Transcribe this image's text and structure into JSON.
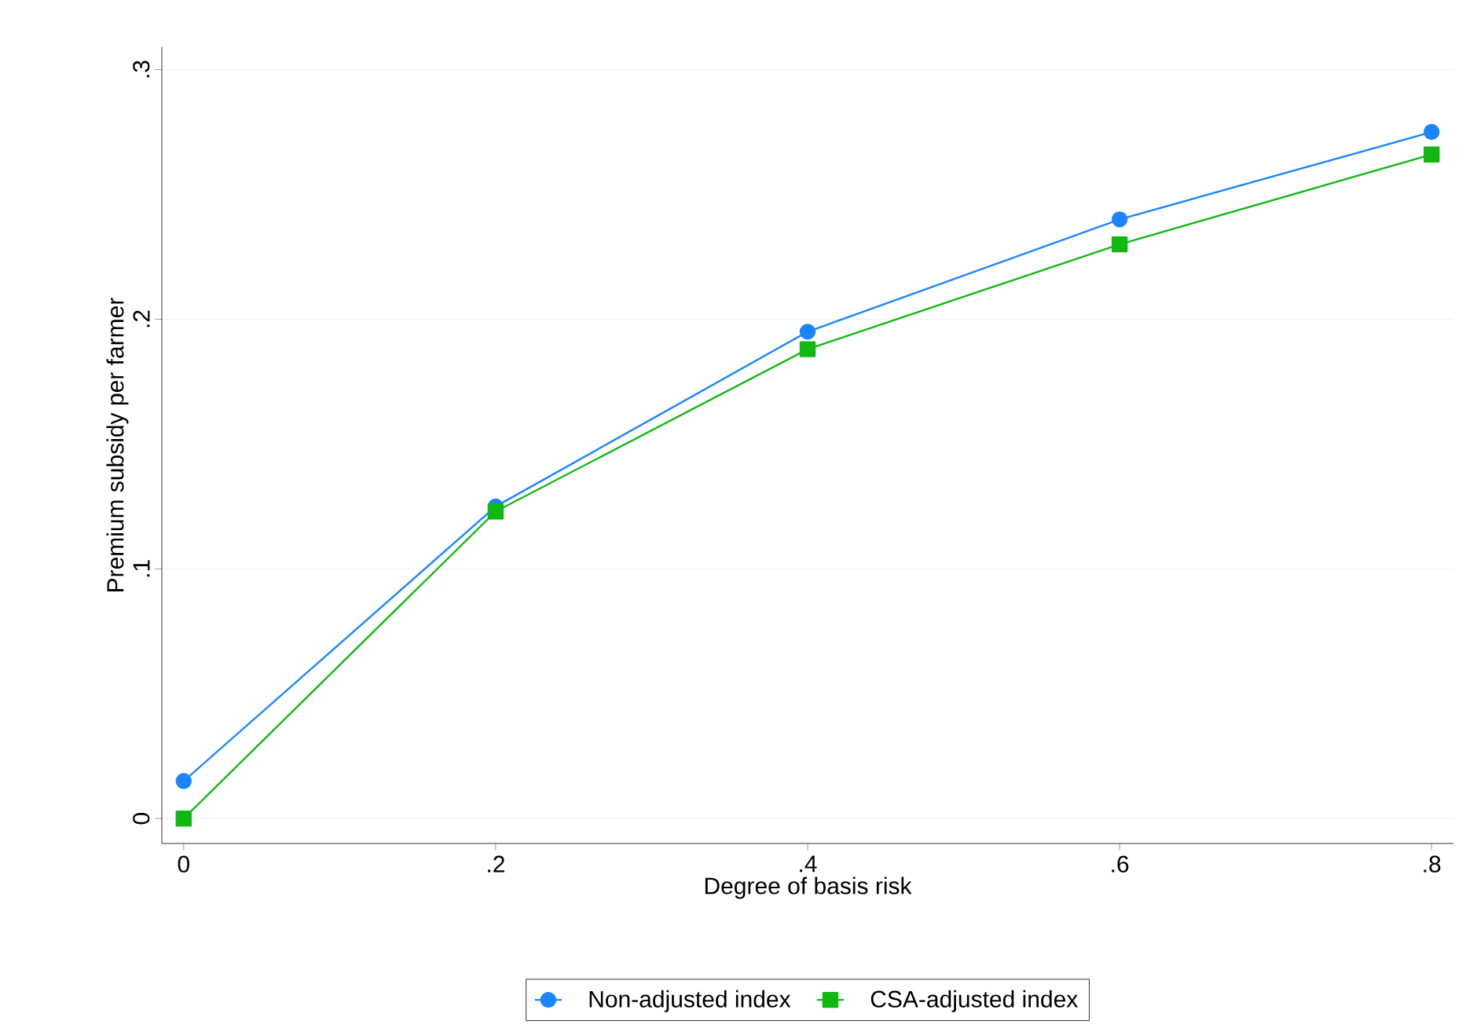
{
  "chart_data": {
    "type": "line",
    "xlabel": "Degree of basis risk",
    "ylabel": "Premium subsidy per farmer",
    "x": [
      0,
      0.2,
      0.4,
      0.6,
      0.8
    ],
    "series": [
      {
        "name": "Non-adjusted index",
        "color": "#1a85ff",
        "marker": "circle",
        "values": [
          0.015,
          0.125,
          0.195,
          0.24,
          0.275
        ]
      },
      {
        "name": "CSA-adjusted index",
        "color": "#12b812",
        "marker": "square",
        "values": [
          0.0,
          0.123,
          0.188,
          0.23,
          0.266
        ]
      }
    ],
    "xlim": [
      -0.014,
      0.814
    ],
    "ylim": [
      -0.01,
      0.309
    ],
    "xticks": [
      0,
      {
        "value": 0.2,
        "label": ".2"
      },
      {
        "value": 0.4,
        "label": ".4"
      },
      {
        "value": 0.6,
        "label": ".6"
      },
      {
        "value": 0.8,
        "label": ".8"
      }
    ],
    "yticks": [
      0,
      {
        "value": 0.1,
        "label": ".1"
      },
      {
        "value": 0.2,
        "label": ".2"
      },
      {
        "value": 0.3,
        "label": ".3"
      }
    ],
    "grid": "y",
    "legend": "bottom",
    "line_style": "solid"
  }
}
